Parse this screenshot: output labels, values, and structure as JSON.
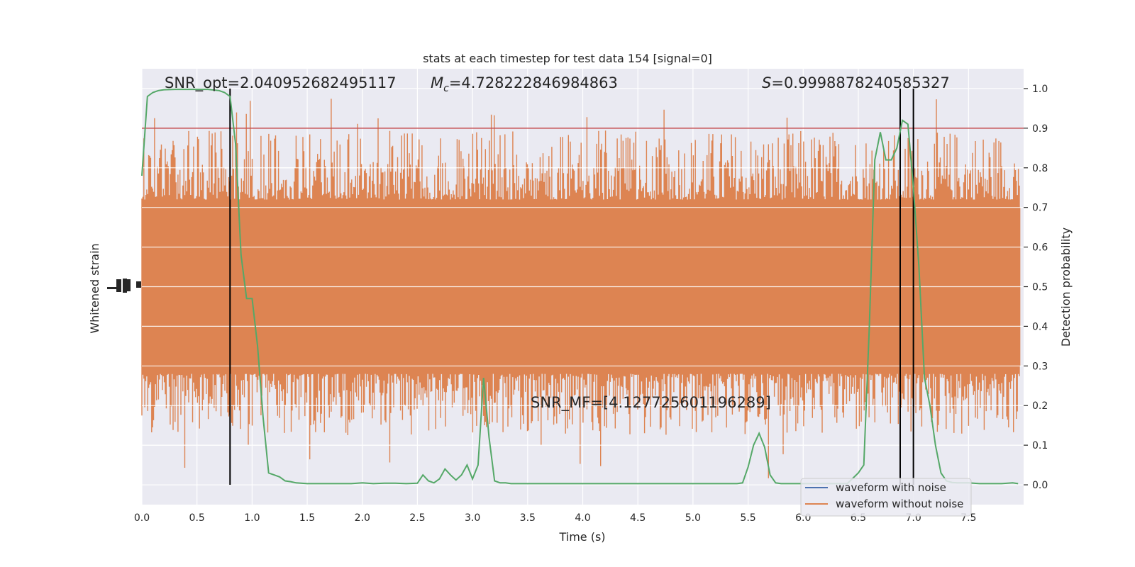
{
  "chart_data": {
    "type": "line",
    "title": "stats at each timestep for test data 154 [signal=0]",
    "xlabel": "Time (s)",
    "ylabel_left": "Whitened strain",
    "ylabel_right": "Detection probability",
    "xlim": [
      0.0,
      8.0
    ],
    "ylim_right": [
      -0.05,
      1.05
    ],
    "xticks": [
      "0.0",
      "0.5",
      "1.0",
      "1.5",
      "2.0",
      "2.5",
      "3.0",
      "3.5",
      "4.0",
      "4.5",
      "5.0",
      "5.5",
      "6.0",
      "6.5",
      "7.0",
      "7.5"
    ],
    "yticks_right": [
      "0.0",
      "0.1",
      "0.2",
      "0.3",
      "0.4",
      "0.5",
      "0.6",
      "0.7",
      "0.8",
      "0.9",
      "1.0"
    ],
    "grid": true,
    "legend_position": "lower right",
    "annotations": {
      "snr_opt": "SNR_opt=2.040952682495117",
      "mc_symbol": "M",
      "mc_sub": "c",
      "mc_value": "=4.728222846984863",
      "s_symbol": "S",
      "s_value": "=0.9998878240585327",
      "snr_mf": "SNR_MF=[4.127725601196289]"
    },
    "threshold": 0.9,
    "vertical_lines": [
      0.8,
      6.88,
      7.0
    ],
    "series": [
      {
        "name": "waveform with noise",
        "color": "#4c72b0",
        "description_values_hidden": true
      },
      {
        "name": "waveform without noise",
        "color": "#dd8452",
        "band": {
          "x_start": 0.0,
          "x_end": 7.97,
          "core_low": 0.3,
          "core_high": 0.7,
          "spike_high_max": 1.0,
          "spike_low_min": 0.0
        }
      }
    ],
    "detection_probability": {
      "color": "#55a868",
      "x": [
        0.0,
        0.05,
        0.1,
        0.15,
        0.2,
        0.3,
        0.4,
        0.5,
        0.6,
        0.7,
        0.75,
        0.8,
        0.85,
        0.9,
        0.95,
        1.0,
        1.05,
        1.1,
        1.15,
        1.2,
        1.25,
        1.3,
        1.35,
        1.4,
        1.5,
        1.6,
        1.7,
        1.8,
        1.9,
        2.0,
        2.1,
        2.2,
        2.3,
        2.4,
        2.5,
        2.55,
        2.6,
        2.65,
        2.7,
        2.75,
        2.8,
        2.85,
        2.9,
        2.95,
        3.0,
        3.05,
        3.1,
        3.15,
        3.2,
        3.25,
        3.3,
        3.35,
        3.4,
        3.45,
        3.5,
        3.6,
        3.8,
        4.0,
        4.2,
        4.4,
        4.6,
        4.8,
        5.0,
        5.2,
        5.3,
        5.35,
        5.4,
        5.45,
        5.5,
        5.55,
        5.6,
        5.65,
        5.7,
        5.75,
        5.8,
        5.9,
        6.0,
        6.2,
        6.4,
        6.5,
        6.55,
        6.6,
        6.65,
        6.7,
        6.75,
        6.8,
        6.85,
        6.9,
        6.95,
        7.0,
        7.05,
        7.1,
        7.15,
        7.2,
        7.25,
        7.3,
        7.35,
        7.4,
        7.5,
        7.6,
        7.7,
        7.8,
        7.9,
        7.95
      ],
      "y": [
        0.78,
        0.98,
        0.99,
        0.995,
        0.997,
        0.998,
        0.998,
        0.998,
        0.998,
        0.995,
        0.99,
        0.98,
        0.86,
        0.58,
        0.47,
        0.47,
        0.35,
        0.17,
        0.03,
        0.025,
        0.02,
        0.01,
        0.008,
        0.005,
        0.003,
        0.003,
        0.003,
        0.003,
        0.003,
        0.005,
        0.003,
        0.004,
        0.004,
        0.003,
        0.004,
        0.025,
        0.01,
        0.005,
        0.015,
        0.04,
        0.025,
        0.012,
        0.025,
        0.05,
        0.015,
        0.05,
        0.27,
        0.12,
        0.01,
        0.005,
        0.005,
        0.003,
        0.003,
        0.003,
        0.003,
        0.003,
        0.003,
        0.003,
        0.003,
        0.003,
        0.003,
        0.003,
        0.003,
        0.003,
        0.003,
        0.003,
        0.003,
        0.005,
        0.045,
        0.1,
        0.13,
        0.095,
        0.025,
        0.005,
        0.003,
        0.003,
        0.003,
        0.003,
        0.003,
        0.03,
        0.05,
        0.4,
        0.82,
        0.89,
        0.82,
        0.82,
        0.85,
        0.92,
        0.91,
        0.75,
        0.55,
        0.27,
        0.2,
        0.1,
        0.03,
        0.01,
        0.006,
        0.005,
        0.005,
        0.003,
        0.003,
        0.003,
        0.005,
        0.003
      ]
    }
  }
}
